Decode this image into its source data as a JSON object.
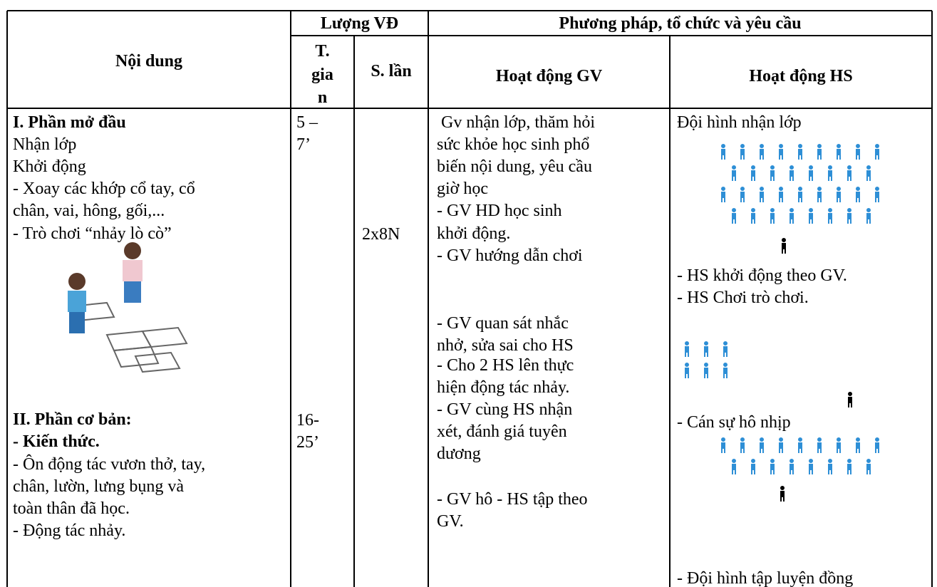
{
  "header": {
    "group_luong": "Lượng VĐ",
    "group_pp": "Phương pháp, tổ chức và yêu cầu",
    "noi_dung": "Nội dung",
    "t_gian": [
      "T.",
      "gia",
      "n"
    ],
    "s_lan": "S. lần",
    "hd_gv": "Hoạt động GV",
    "hd_hs": "Hoạt động HS"
  },
  "body": {
    "noi_dung": [
      "I. Phần mở đầu",
      "Nhận lớp",
      "Khởi động",
      "- Xoay các khớp cổ tay, cổ",
      "chân, vai, hông, gối,...",
      "- Trò chơi “nhảy lò cò”",
      "II. Phần cơ bản:",
      "- Kiến thức.",
      "- Ôn động tác vươn thở, tay,",
      "chân, lườn, lưng bụng và",
      "toàn thân đã học.",
      "- Động tác nhảy."
    ],
    "t_gian": [
      "5 –",
      "7’",
      "16-",
      "25’"
    ],
    "s_lan": [
      "2x8N"
    ],
    "hd_gv": [
      " Gv nhận lớp, thăm hỏi",
      "sức khỏe học sinh phổ",
      "biến nội dung, yêu cầu",
      "giờ học",
      "- GV HD học sinh",
      "khởi động.",
      "- GV hướng dẫn chơi",
      "- GV quan sát nhắc",
      "nhở, sửa sai cho HS",
      "- Cho 2 HS lên thực",
      "hiện động tác nhảy.",
      "- GV cùng HS nhận",
      "xét, đánh giá tuyên",
      "dương",
      "- GV hô - HS tập theo",
      "GV."
    ],
    "hd_hs": [
      "Đội hình nhận lớp",
      "- HS khởi động theo GV.",
      "- HS Chơi trò chơi.",
      "- Cán sự hô nhịp",
      "- Đội hình tập luyện đồng"
    ]
  }
}
